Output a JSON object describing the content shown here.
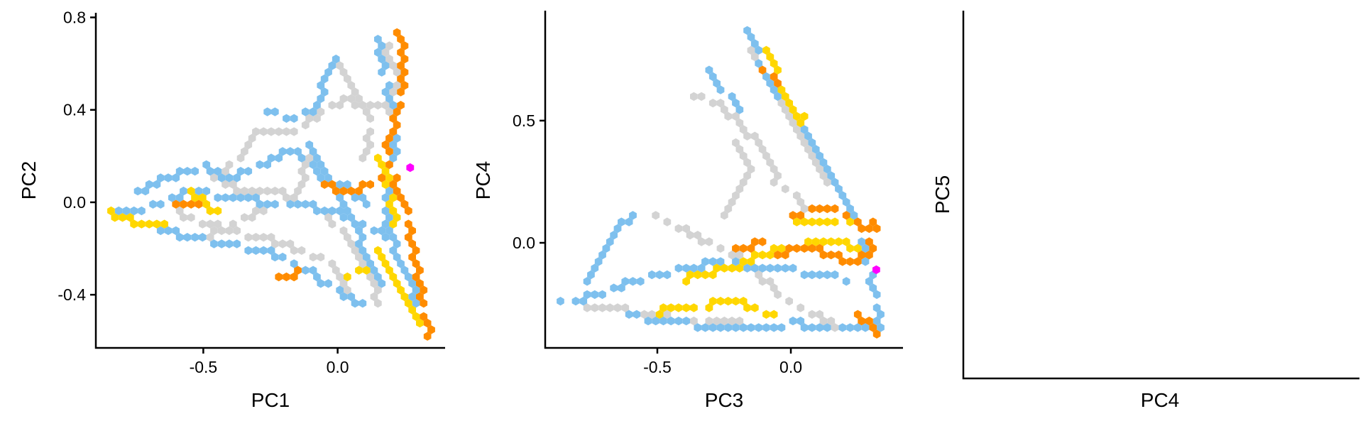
{
  "colors": {
    "light_gray": "#d3d3d3",
    "sky_blue": "#7ec0ee",
    "gold": "#ffd700",
    "orange": "#ff8c00",
    "magenta": "#ff00ff"
  },
  "chart_data": [
    {
      "type": "hexbin",
      "xlabel": "PC1",
      "ylabel": "PC2",
      "xlim": [
        -0.9,
        0.4
      ],
      "ylim": [
        -0.63,
        0.82
      ],
      "x_ticks": [
        -0.5,
        0.0
      ],
      "x_tick_labels": [
        "-0.5",
        "0.0"
      ],
      "y_ticks": [
        -0.4,
        0.0,
        0.4,
        0.8
      ],
      "y_tick_labels": [
        "-0.4",
        "0.0",
        "0.4",
        "0.8"
      ],
      "color_legend_order": [
        "light_gray",
        "sky_blue",
        "gold",
        "orange",
        "magenta"
      ],
      "hex_strokes": [
        {
          "color": "light_gray",
          "points": [
            [
              0.18,
              0.68
            ],
            [
              0.22,
              0.55
            ],
            [
              0.18,
              0.4
            ],
            [
              0.02,
              0.45
            ],
            [
              -0.1,
              0.35
            ],
            [
              -0.15,
              0.3
            ],
            [
              -0.3,
              0.3
            ],
            [
              -0.45,
              0.1
            ],
            [
              -0.35,
              0.05
            ],
            [
              -0.2,
              0.05
            ],
            [
              -0.05,
              -0.05
            ],
            [
              0.05,
              -0.15
            ],
            [
              0.12,
              -0.3
            ],
            [
              0.15,
              -0.45
            ]
          ]
        },
        {
          "color": "light_gray",
          "points": [
            [
              -0.6,
              -0.05
            ],
            [
              -0.4,
              -0.12
            ],
            [
              -0.2,
              -0.18
            ],
            [
              -0.05,
              -0.25
            ],
            [
              0.05,
              -0.38
            ]
          ]
        },
        {
          "color": "light_gray",
          "points": [
            [
              -0.1,
              0.2
            ],
            [
              -0.15,
              0.05
            ],
            [
              -0.3,
              -0.05
            ],
            [
              -0.48,
              -0.15
            ]
          ]
        },
        {
          "color": "light_gray",
          "points": [
            [
              0.0,
              0.6
            ],
            [
              0.05,
              0.5
            ],
            [
              0.12,
              0.35
            ],
            [
              0.1,
              0.2
            ]
          ]
        },
        {
          "color": "sky_blue",
          "points": [
            [
              0.15,
              0.7
            ],
            [
              0.17,
              0.55
            ],
            [
              0.2,
              0.45
            ],
            [
              0.22,
              0.3
            ],
            [
              0.2,
              0.15
            ],
            [
              0.18,
              0.0
            ],
            [
              0.2,
              -0.15
            ],
            [
              0.25,
              -0.3
            ],
            [
              0.3,
              -0.45
            ]
          ]
        },
        {
          "color": "sky_blue",
          "points": [
            [
              0.0,
              0.62
            ],
            [
              -0.05,
              0.5
            ],
            [
              -0.1,
              0.4
            ],
            [
              -0.18,
              0.35
            ],
            [
              -0.25,
              0.4
            ]
          ]
        },
        {
          "color": "sky_blue",
          "points": [
            [
              -0.85,
              -0.05
            ],
            [
              -0.7,
              -0.02
            ],
            [
              -0.55,
              0.05
            ],
            [
              -0.4,
              0.02
            ],
            [
              -0.25,
              0.0
            ],
            [
              -0.1,
              -0.02
            ],
            [
              0.0,
              -0.05
            ],
            [
              0.1,
              -0.1
            ],
            [
              0.2,
              -0.15
            ]
          ]
        },
        {
          "color": "sky_blue",
          "points": [
            [
              -0.75,
              0.05
            ],
            [
              -0.6,
              0.12
            ],
            [
              -0.5,
              0.15
            ],
            [
              -0.4,
              0.1
            ],
            [
              -0.3,
              0.15
            ],
            [
              -0.2,
              0.22
            ],
            [
              -0.12,
              0.2
            ],
            [
              -0.05,
              0.12
            ],
            [
              0.05,
              0.05
            ],
            [
              0.12,
              0.0
            ]
          ]
        },
        {
          "color": "sky_blue",
          "points": [
            [
              -0.7,
              -0.1
            ],
            [
              -0.55,
              -0.15
            ],
            [
              -0.4,
              -0.18
            ],
            [
              -0.25,
              -0.22
            ],
            [
              -0.1,
              -0.3
            ],
            [
              0.0,
              -0.38
            ],
            [
              0.1,
              -0.45
            ]
          ]
        },
        {
          "color": "sky_blue",
          "points": [
            [
              -0.1,
              0.25
            ],
            [
              -0.05,
              0.15
            ],
            [
              0.0,
              0.05
            ],
            [
              0.05,
              -0.05
            ],
            [
              0.1,
              -0.2
            ],
            [
              0.15,
              -0.35
            ]
          ]
        },
        {
          "color": "gold",
          "points": [
            [
              -0.85,
              -0.05
            ],
            [
              -0.75,
              -0.08
            ],
            [
              -0.65,
              -0.1
            ]
          ]
        },
        {
          "color": "gold",
          "points": [
            [
              -0.55,
              0.05
            ],
            [
              -0.45,
              -0.05
            ]
          ]
        },
        {
          "color": "gold",
          "points": [
            [
              0.15,
              -0.2
            ],
            [
              0.2,
              -0.3
            ],
            [
              0.25,
              -0.4
            ],
            [
              0.3,
              -0.5
            ],
            [
              0.33,
              -0.57
            ]
          ]
        },
        {
          "color": "gold",
          "points": [
            [
              0.15,
              0.2
            ],
            [
              0.18,
              0.1
            ],
            [
              0.2,
              0.0
            ],
            [
              0.22,
              -0.1
            ]
          ]
        },
        {
          "color": "gold",
          "points": [
            [
              0.05,
              -0.32
            ],
            [
              0.12,
              -0.28
            ]
          ]
        },
        {
          "color": "orange",
          "points": [
            [
              0.23,
              0.74
            ],
            [
              0.24,
              0.62
            ],
            [
              0.24,
              0.5
            ],
            [
              0.22,
              0.4
            ],
            [
              0.2,
              0.3
            ],
            [
              0.18,
              0.22
            ]
          ]
        },
        {
          "color": "orange",
          "points": [
            [
              0.2,
              0.15
            ],
            [
              0.22,
              0.05
            ],
            [
              0.25,
              -0.05
            ],
            [
              0.28,
              -0.18
            ],
            [
              0.3,
              -0.3
            ],
            [
              0.32,
              -0.45
            ],
            [
              0.34,
              -0.57
            ]
          ]
        },
        {
          "color": "orange",
          "points": [
            [
              -0.05,
              0.07
            ],
            [
              0.05,
              0.05
            ],
            [
              0.15,
              0.1
            ]
          ]
        },
        {
          "color": "orange",
          "points": [
            [
              -0.22,
              -0.33
            ],
            [
              -0.15,
              -0.3
            ]
          ]
        },
        {
          "color": "orange",
          "points": [
            [
              -0.9,
              -0.05
            ]
          ]
        },
        {
          "color": "orange",
          "points": [
            [
              -0.6,
              -0.02
            ],
            [
              -0.52,
              -0.02
            ]
          ]
        }
      ],
      "highlight_points": [
        {
          "color": "magenta",
          "x": 0.27,
          "y": 0.15
        }
      ]
    },
    {
      "type": "hexbin",
      "xlabel": "PC3",
      "ylabel": "PC4",
      "xlim": [
        -0.92,
        0.42
      ],
      "ylim": [
        -0.43,
        0.95
      ],
      "x_ticks": [
        -0.5,
        0.0
      ],
      "x_tick_labels": [
        "-0.5",
        "0.0"
      ],
      "y_ticks": [
        0.0,
        0.5
      ],
      "y_tick_labels": [
        "0.0",
        "0.5"
      ],
      "hex_strokes": [
        {
          "color": "light_gray",
          "points": [
            [
              -0.15,
              0.78
            ],
            [
              -0.1,
              0.7
            ],
            [
              -0.05,
              0.6
            ],
            [
              0.0,
              0.5
            ],
            [
              0.05,
              0.4
            ],
            [
              0.1,
              0.3
            ],
            [
              0.2,
              0.2
            ]
          ]
        },
        {
          "color": "light_gray",
          "points": [
            [
              -0.35,
              0.6
            ],
            [
              -0.25,
              0.55
            ],
            [
              -0.15,
              0.45
            ],
            [
              -0.1,
              0.35
            ],
            [
              -0.05,
              0.25
            ],
            [
              0.05,
              0.15
            ]
          ]
        },
        {
          "color": "light_gray",
          "points": [
            [
              -0.5,
              0.1
            ],
            [
              -0.4,
              0.05
            ],
            [
              -0.3,
              0.0
            ],
            [
              -0.2,
              -0.05
            ],
            [
              -0.1,
              -0.15
            ],
            [
              0.0,
              -0.25
            ],
            [
              0.1,
              -0.3
            ],
            [
              0.2,
              -0.35
            ]
          ]
        },
        {
          "color": "light_gray",
          "points": [
            [
              -0.8,
              -0.25
            ],
            [
              -0.65,
              -0.27
            ],
            [
              -0.5,
              -0.3
            ],
            [
              -0.35,
              -0.32
            ],
            [
              -0.2,
              -0.33
            ]
          ]
        },
        {
          "color": "light_gray",
          "points": [
            [
              -0.2,
              0.4
            ],
            [
              -0.15,
              0.3
            ],
            [
              -0.2,
              0.2
            ],
            [
              -0.25,
              0.1
            ]
          ]
        },
        {
          "color": "sky_blue",
          "points": [
            [
              -0.15,
              0.87
            ],
            [
              -0.12,
              0.78
            ],
            [
              -0.08,
              0.68
            ],
            [
              -0.02,
              0.58
            ],
            [
              0.05,
              0.48
            ],
            [
              0.1,
              0.38
            ],
            [
              0.15,
              0.28
            ],
            [
              0.2,
              0.18
            ],
            [
              0.25,
              0.08
            ],
            [
              0.28,
              -0.02
            ],
            [
              0.3,
              -0.12
            ],
            [
              0.32,
              -0.22
            ],
            [
              0.33,
              -0.35
            ]
          ]
        },
        {
          "color": "sky_blue",
          "points": [
            [
              -0.85,
              -0.25
            ],
            [
              -0.7,
              -0.2
            ],
            [
              -0.55,
              -0.15
            ],
            [
              -0.4,
              -0.1
            ],
            [
              -0.25,
              -0.08
            ],
            [
              -0.1,
              -0.1
            ],
            [
              0.05,
              -0.12
            ],
            [
              0.2,
              -0.15
            ]
          ]
        },
        {
          "color": "sky_blue",
          "points": [
            [
              -0.75,
              -0.15
            ],
            [
              -0.7,
              -0.05
            ],
            [
              -0.65,
              0.05
            ],
            [
              -0.6,
              0.12
            ]
          ]
        },
        {
          "color": "sky_blue",
          "points": [
            [
              -0.6,
              -0.3
            ],
            [
              -0.45,
              -0.32
            ],
            [
              -0.3,
              -0.35
            ],
            [
              -0.15,
              -0.35
            ],
            [
              0.0,
              -0.33
            ],
            [
              0.15,
              -0.34
            ],
            [
              0.3,
              -0.36
            ]
          ]
        },
        {
          "color": "sky_blue",
          "points": [
            [
              -0.3,
              0.7
            ],
            [
              -0.25,
              0.62
            ],
            [
              -0.2,
              0.55
            ]
          ]
        },
        {
          "color": "gold",
          "points": [
            [
              -0.1,
              0.78
            ],
            [
              -0.05,
              0.68
            ],
            [
              0.0,
              0.58
            ],
            [
              0.05,
              0.48
            ]
          ]
        },
        {
          "color": "gold",
          "points": [
            [
              -0.4,
              -0.15
            ],
            [
              -0.3,
              -0.12
            ],
            [
              -0.2,
              -0.1
            ],
            [
              -0.1,
              -0.05
            ],
            [
              0.0,
              -0.02
            ],
            [
              0.1,
              0.0
            ],
            [
              0.2,
              0.0
            ],
            [
              0.3,
              -0.05
            ]
          ]
        },
        {
          "color": "gold",
          "points": [
            [
              -0.5,
              -0.28
            ],
            [
              -0.35,
              -0.26
            ],
            [
              -0.2,
              -0.24
            ],
            [
              -0.05,
              -0.3
            ]
          ]
        },
        {
          "color": "gold",
          "points": [
            [
              0.0,
              0.1
            ],
            [
              0.1,
              0.08
            ],
            [
              0.2,
              0.1
            ],
            [
              0.3,
              0.05
            ]
          ]
        },
        {
          "color": "orange",
          "points": [
            [
              -0.05,
              -0.05
            ],
            [
              0.05,
              -0.02
            ],
            [
              0.15,
              -0.05
            ],
            [
              0.25,
              -0.08
            ],
            [
              0.3,
              -0.02
            ],
            [
              0.32,
              0.08
            ]
          ]
        },
        {
          "color": "orange",
          "points": [
            [
              0.0,
              0.1
            ],
            [
              0.1,
              0.15
            ],
            [
              0.2,
              0.12
            ],
            [
              0.28,
              0.05
            ]
          ]
        },
        {
          "color": "orange",
          "points": [
            [
              -0.1,
              0.7
            ],
            [
              -0.05,
              0.65
            ]
          ]
        },
        {
          "color": "orange",
          "points": [
            [
              0.25,
              -0.3
            ],
            [
              0.3,
              -0.33
            ],
            [
              0.33,
              -0.38
            ]
          ]
        },
        {
          "color": "orange",
          "points": [
            [
              -0.2,
              -0.02
            ],
            [
              -0.1,
              0.0
            ]
          ]
        }
      ],
      "highlight_points": [
        {
          "color": "magenta",
          "x": 0.32,
          "y": -0.11
        }
      ]
    },
    {
      "type": "hexbin",
      "xlabel": "PC4",
      "ylabel": "PC5",
      "x_ticks": [],
      "y_ticks": [],
      "hex_strokes": [],
      "highlight_points": []
    }
  ]
}
